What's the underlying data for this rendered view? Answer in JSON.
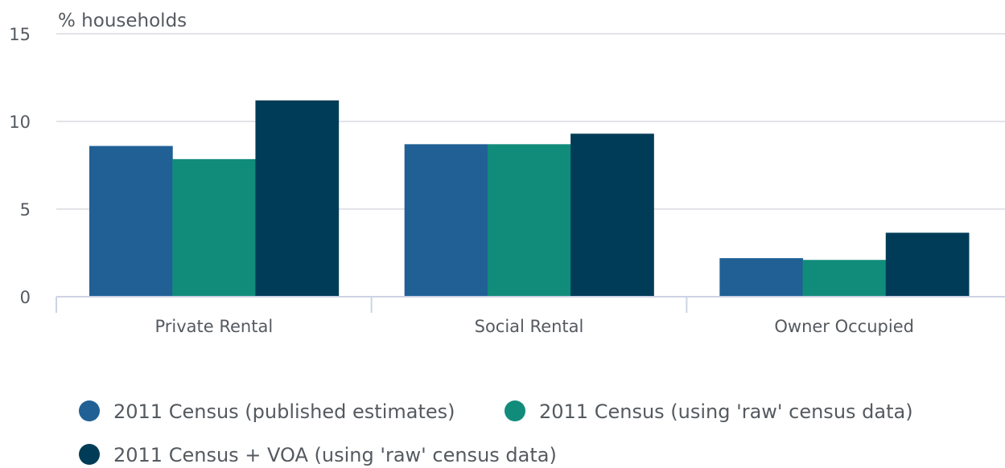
{
  "chart_data": {
    "type": "bar",
    "ylabel": "% households",
    "ylim": [
      0,
      15
    ],
    "yticks": [
      0,
      5,
      10,
      15
    ],
    "grid": true,
    "legend_position": "bottom",
    "categories": [
      "Private Rental",
      "Social Rental",
      "Owner Occupied"
    ],
    "series": [
      {
        "name": "2011 Census (published estimates)",
        "color": "#206095",
        "values": [
          8.6,
          8.7,
          2.2
        ]
      },
      {
        "name": "2011 Census (using 'raw' census data)",
        "color": "#118c7b",
        "values": [
          7.85,
          8.7,
          2.1
        ]
      },
      {
        "name": "2011 Census + VOA (using 'raw' census data)",
        "color": "#003c57",
        "values": [
          11.2,
          9.3,
          3.65
        ]
      }
    ]
  }
}
